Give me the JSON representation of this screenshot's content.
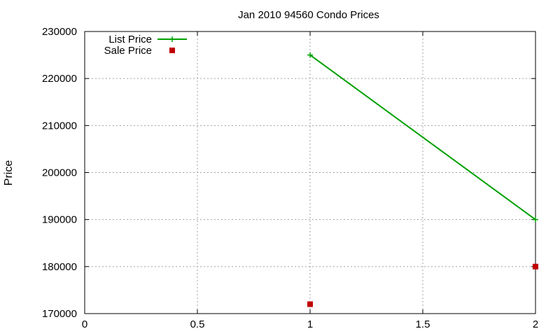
{
  "chart_data": {
    "type": "line",
    "title": "Jan 2010 94560 Condo Prices",
    "xlabel": "",
    "ylabel": "Price",
    "xlim": [
      0,
      2
    ],
    "ylim": [
      170000,
      230000
    ],
    "x_ticks": [
      0,
      0.5,
      1,
      1.5,
      2
    ],
    "x_tick_labels": [
      "0",
      "0.5",
      "1",
      "1.5",
      "2"
    ],
    "y_ticks": [
      170000,
      180000,
      190000,
      200000,
      210000,
      220000,
      230000
    ],
    "y_tick_labels": [
      "170000",
      "180000",
      "190000",
      "200000",
      "210000",
      "220000",
      "230000"
    ],
    "grid": true,
    "legend_position": "top-left",
    "series": [
      {
        "name": "List Price",
        "style": "linespoints",
        "marker": "plus",
        "color": "#00a000",
        "points": [
          {
            "x": 1,
            "y": 225000
          },
          {
            "x": 2,
            "y": 190000
          }
        ]
      },
      {
        "name": "Sale Price",
        "style": "points",
        "marker": "square",
        "color": "#c00000",
        "points": [
          {
            "x": 1,
            "y": 172000
          },
          {
            "x": 2,
            "y": 180000
          }
        ]
      }
    ]
  }
}
